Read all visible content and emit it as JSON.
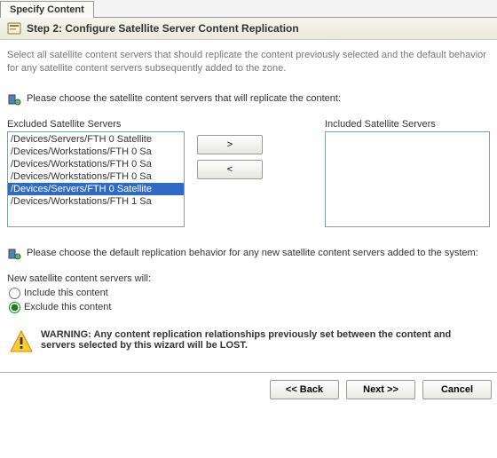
{
  "tab": {
    "label": "Specify Content"
  },
  "step": {
    "title": "Step 2: Configure Satellite Server Content Replication"
  },
  "description": "Select all satellite content servers that should replicate the content previously selected and the default behavior for any satellite content servers subsequently added to the zone.",
  "section1": {
    "text": "Please choose the satellite content servers that will replicate the content:"
  },
  "lists": {
    "excluded_label": "Excluded Satellite Servers",
    "included_label": "Included Satellite Servers",
    "excluded": [
      {
        "label": "/Devices/Servers/FTH 0 Satellite",
        "selected": false
      },
      {
        "label": "/Devices/Workstations/FTH 0 Sa",
        "selected": false
      },
      {
        "label": "/Devices/Workstations/FTH 0 Sa",
        "selected": false
      },
      {
        "label": "/Devices/Workstations/FTH 0 Sa",
        "selected": false
      },
      {
        "label": "/Devices/Servers/FTH 0 Satellite",
        "selected": true
      },
      {
        "label": "/Devices/Workstations/FTH 1 Sa",
        "selected": false
      }
    ],
    "included": []
  },
  "buttons": {
    "move_right": ">",
    "move_left": "<"
  },
  "section2": {
    "text": "Please choose the default replication behavior for any new satellite content servers added to the system:"
  },
  "radios": {
    "heading": "New satellite content servers will:",
    "include_label": "Include this content",
    "exclude_label": "Exclude this content",
    "selected": "exclude"
  },
  "warning": {
    "text": "WARNING: Any content replication relationships previously set between the content and servers selected by this wizard will be LOST."
  },
  "footer": {
    "back": "<< Back",
    "next": "Next >>",
    "cancel": "Cancel"
  }
}
